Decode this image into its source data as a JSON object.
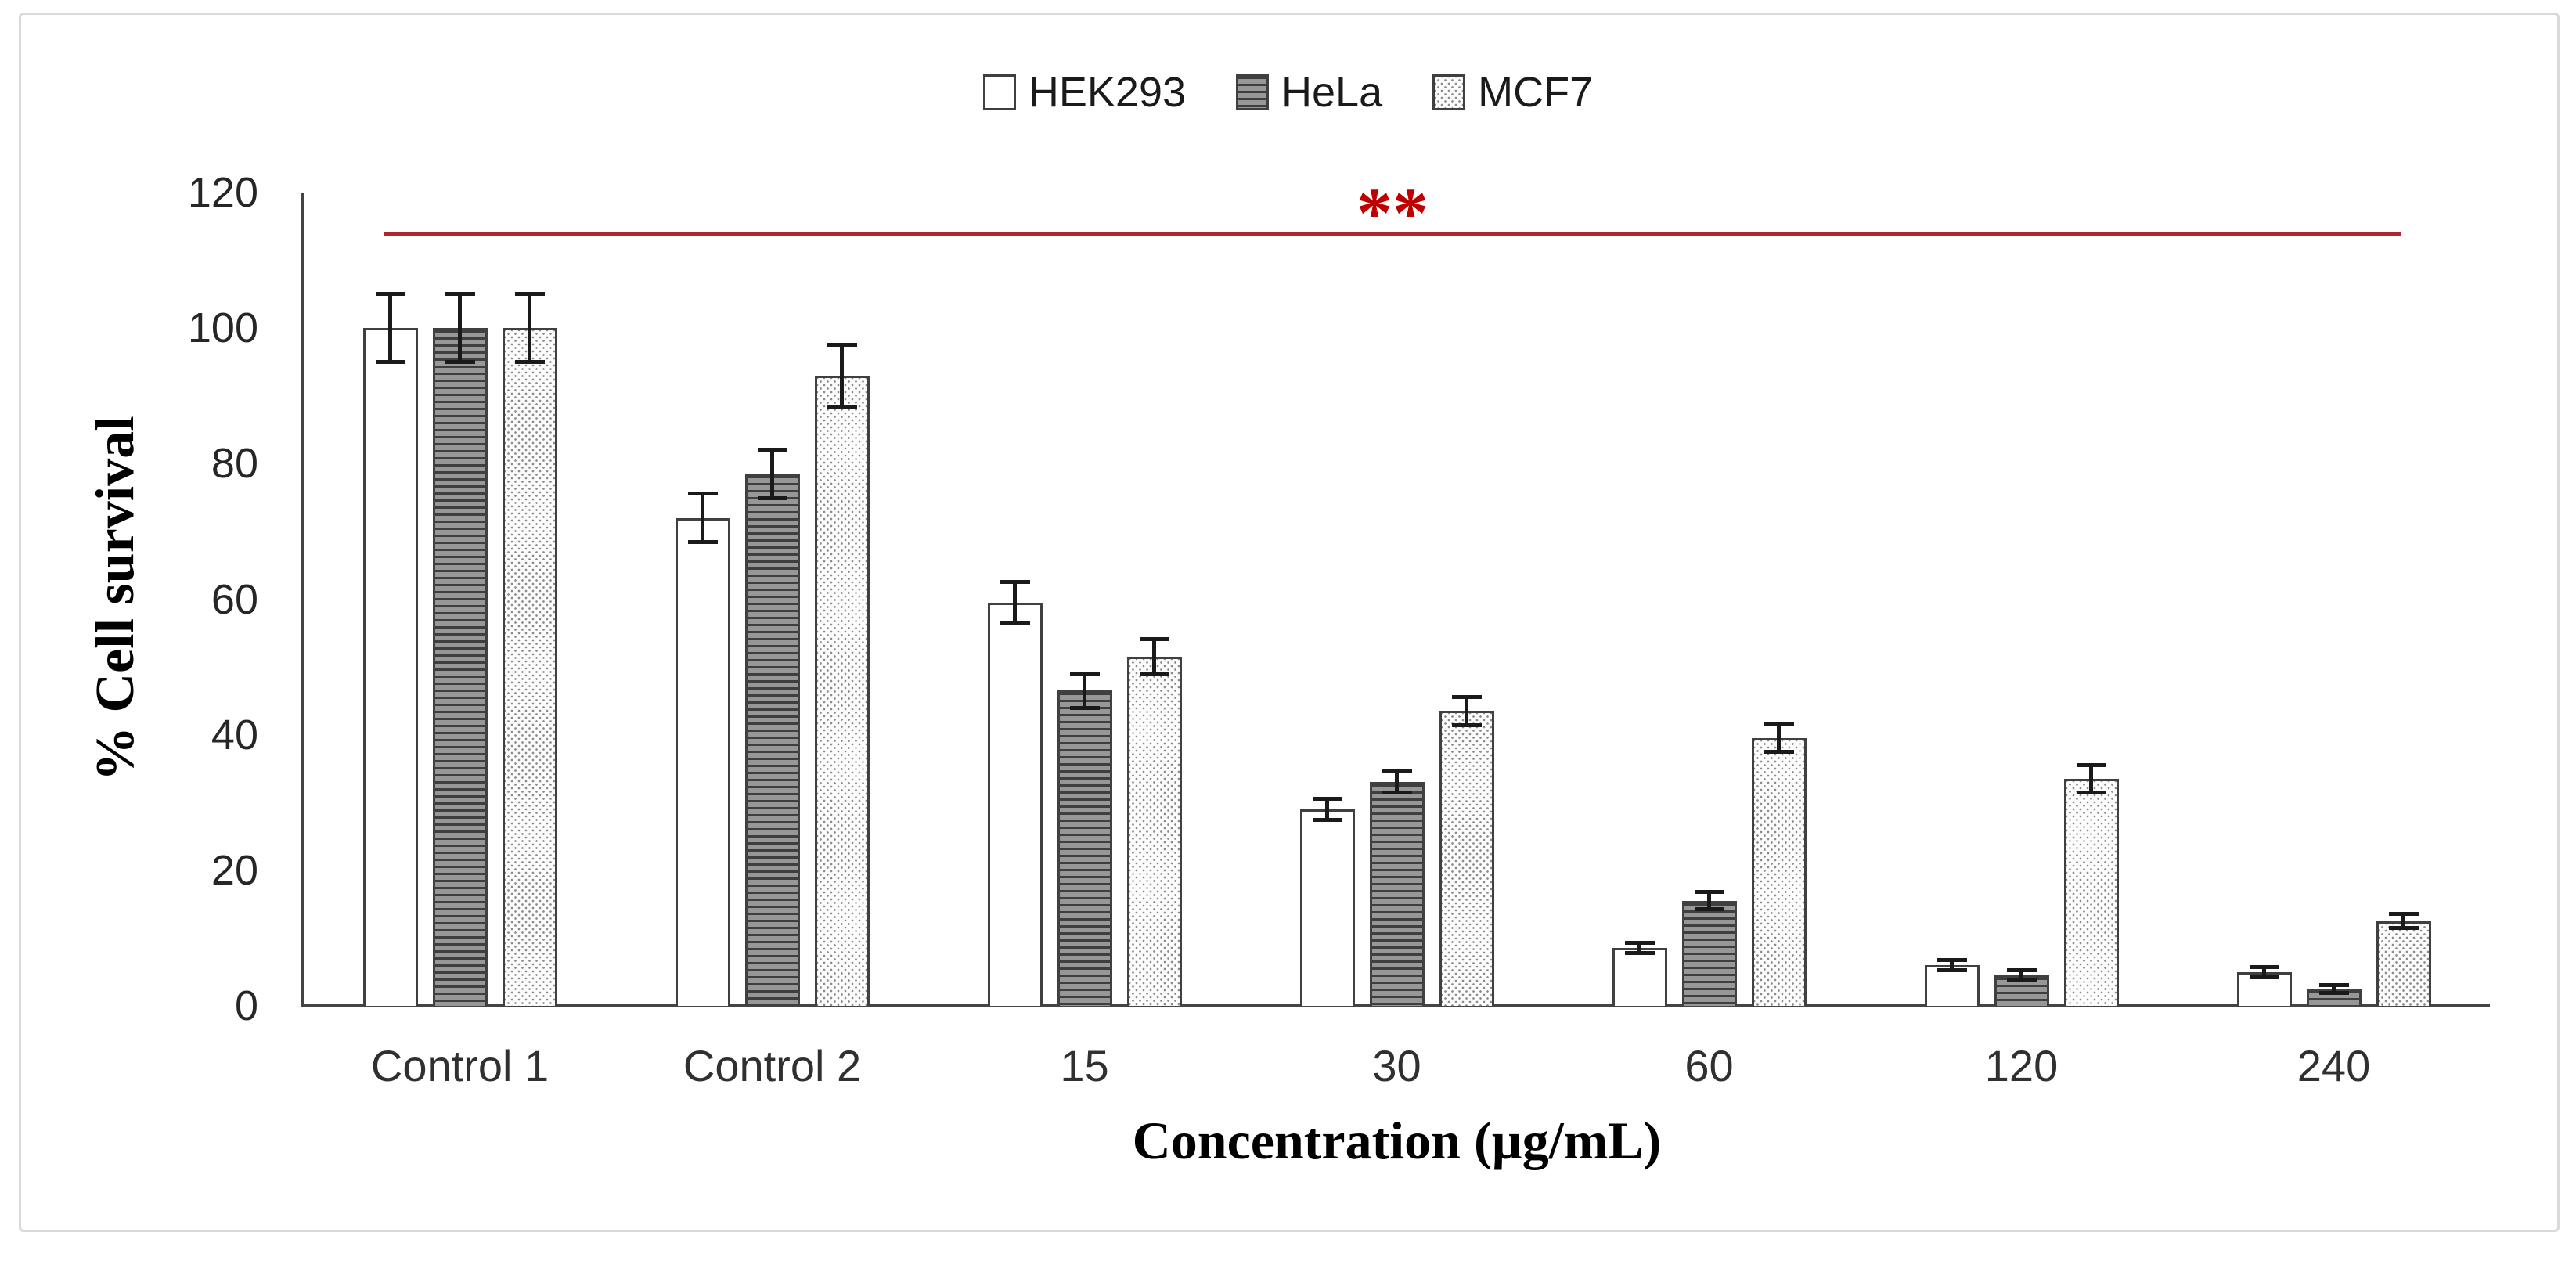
{
  "chart_data": {
    "type": "bar",
    "title": "",
    "xlabel": "Concentration (µg/mL)",
    "ylabel": "% Cell survival",
    "categories": [
      "Control 1",
      "Control 2",
      "15",
      "30",
      "60",
      "120",
      "240"
    ],
    "series": [
      {
        "name": "HEK293",
        "pattern": "solid-white",
        "values": [
          100,
          72,
          59.5,
          29,
          8.5,
          6,
          5
        ],
        "errors": [
          5,
          3.5,
          3,
          1.5,
          0.7,
          0.7,
          0.7
        ]
      },
      {
        "name": "HeLa",
        "pattern": "horizontal-stripes",
        "values": [
          100,
          78.5,
          46.5,
          33,
          15.5,
          4.5,
          2.5
        ],
        "errors": [
          5,
          3.5,
          2.5,
          1.5,
          1.2,
          0.7,
          0.5
        ]
      },
      {
        "name": "MCF7",
        "pattern": "dots",
        "values": [
          100,
          93,
          51.5,
          43.5,
          39.5,
          33.5,
          12.5
        ],
        "errors": [
          5,
          4.5,
          2.5,
          2,
          2,
          2,
          1
        ]
      }
    ],
    "ylim": [
      0,
      120
    ],
    "yticks": [
      0,
      20,
      40,
      60,
      80,
      100,
      120
    ],
    "grid": false,
    "legend_position": "top-center",
    "annotation": {
      "text": "**",
      "text_color": "#c00000",
      "line_color": "#b02532",
      "line_y": 114
    }
  }
}
